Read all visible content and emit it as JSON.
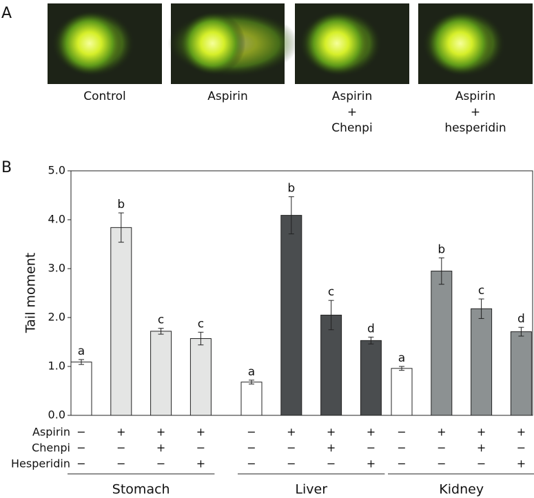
{
  "panel_a": {
    "label": "A",
    "images": [
      {
        "lines": [
          "Control"
        ]
      },
      {
        "lines": [
          "Aspirin"
        ]
      },
      {
        "lines": [
          "Aspirin",
          "+",
          "Chenpi"
        ]
      },
      {
        "lines": [
          "Aspirin",
          "+",
          "hesperidin"
        ]
      }
    ]
  },
  "chart_data": {
    "type": "bar",
    "panel_label": "B",
    "y_label": "Tail moment",
    "ylim": [
      0,
      5
    ],
    "yticks": [
      {
        "value": 0,
        "label": "0.0"
      },
      {
        "value": 1,
        "label": "1.0"
      },
      {
        "value": 2,
        "label": "2.0"
      },
      {
        "value": 3,
        "label": "3.0"
      },
      {
        "value": 4,
        "label": "4.0"
      },
      {
        "value": 5,
        "label": "5.0"
      }
    ],
    "series": [
      {
        "name": "Stomach",
        "values": [
          1.09,
          3.84,
          1.72,
          1.57
        ],
        "errors": [
          0.05,
          0.3,
          0.06,
          0.13
        ],
        "letters": [
          "a",
          "b",
          "c",
          "c"
        ],
        "colors": [
          "#ffffff",
          "#e4e5e4",
          "#e4e5e4",
          "#e4e5e4"
        ]
      },
      {
        "name": "Liver",
        "values": [
          0.68,
          4.09,
          2.05,
          1.53
        ],
        "errors": [
          0.04,
          0.38,
          0.3,
          0.07
        ],
        "letters": [
          "a",
          "b",
          "c",
          "d"
        ],
        "colors": [
          "#ffffff",
          "#4a4d4f",
          "#4a4d4f",
          "#4a4d4f"
        ]
      },
      {
        "name": "Kidney",
        "values": [
          0.96,
          2.95,
          2.18,
          1.71
        ],
        "errors": [
          0.04,
          0.27,
          0.2,
          0.09
        ],
        "letters": [
          "a",
          "b",
          "c",
          "d"
        ],
        "colors": [
          "#ffffff",
          "#8c9192",
          "#8c9192",
          "#8c9192"
        ]
      }
    ],
    "treatments": [
      {
        "name": "Aspirin",
        "marks": [
          "−",
          "+",
          "+",
          "+"
        ]
      },
      {
        "name": "Chenpi",
        "marks": [
          "−",
          "−",
          "+",
          "−"
        ]
      },
      {
        "name": "Hesperidin",
        "marks": [
          "−",
          "−",
          "−",
          "+"
        ]
      }
    ]
  }
}
